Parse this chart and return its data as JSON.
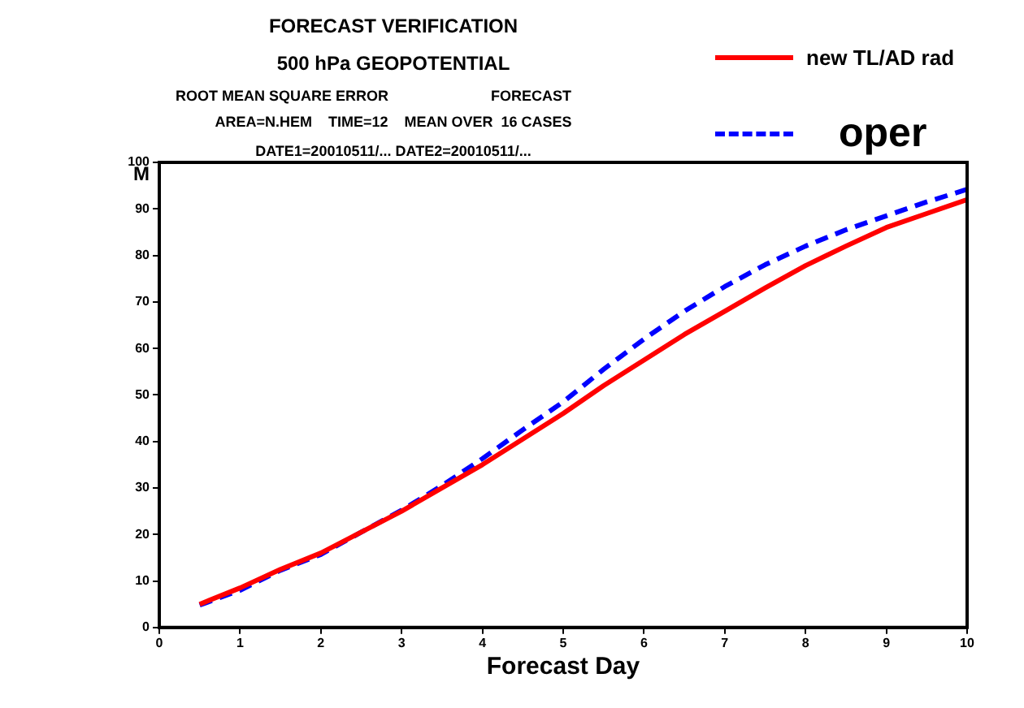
{
  "chart_data": {
    "type": "line",
    "title": "FORECAST VERIFICATION",
    "subtitle": "500 hPa GEOPOTENTIAL",
    "annotations": [
      "ROOT MEAN SQUARE ERROR",
      "FORECAST",
      "AREA=N.HEM    TIME=12    MEAN OVER  16 CASES",
      "DATE1=20010511/... DATE2=20010511/..."
    ],
    "xlabel": "Forecast Day",
    "ylabel": "M",
    "x": [
      0.5,
      1,
      1.5,
      2,
      2.5,
      3,
      3.5,
      4,
      4.5,
      5,
      5.5,
      6,
      6.5,
      7,
      7.5,
      8,
      8.5,
      9,
      9.5,
      10
    ],
    "series": [
      {
        "name": "new TL/AD rad",
        "color": "#ff0000",
        "line_style": "solid",
        "values": [
          5,
          8.5,
          12.5,
          16,
          20.5,
          25,
          30,
          35,
          40.5,
          46,
          52,
          57.5,
          63,
          68,
          73,
          77.8,
          82,
          86,
          89,
          92
        ]
      },
      {
        "name": "oper",
        "color": "#0000ff",
        "line_style": "dashed",
        "values": [
          4.8,
          8,
          12.3,
          15.7,
          20.5,
          25.2,
          30.5,
          36.3,
          42.5,
          48.5,
          55.5,
          62,
          68,
          73.3,
          78,
          82,
          85.5,
          88.5,
          91.5,
          94.2
        ]
      }
    ],
    "xlim": [
      0,
      10
    ],
    "xticks": [
      0,
      1,
      2,
      3,
      4,
      5,
      6,
      7,
      8,
      9,
      10
    ],
    "ylim": [
      0,
      100
    ],
    "yticks": [
      0,
      10,
      20,
      30,
      40,
      50,
      60,
      70,
      80,
      90,
      100
    ],
    "grid": false,
    "legend": "top right",
    "marker": "none"
  }
}
